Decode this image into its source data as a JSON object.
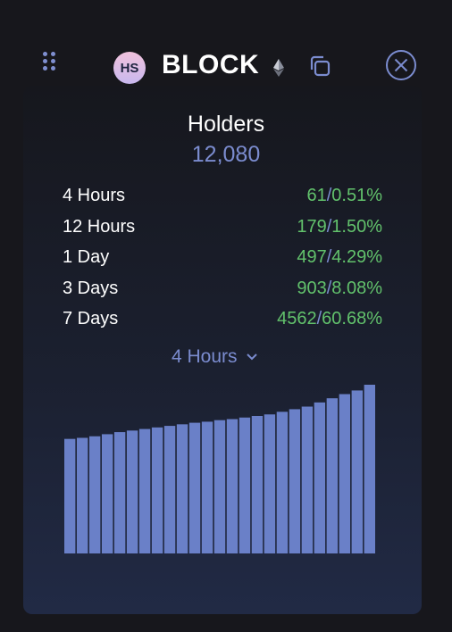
{
  "header": {
    "avatar_text": "HS",
    "token_name": "BLOCK",
    "icons": {
      "drag": "drag-handle-icon",
      "chain": "ethereum-icon",
      "copy": "copy-icon",
      "close": "close-icon"
    }
  },
  "holders": {
    "title": "Holders",
    "count": "12,080"
  },
  "stats": [
    {
      "label": "4 Hours",
      "count": "61",
      "percent": "0.51%"
    },
    {
      "label": "12 Hours",
      "count": "179",
      "percent": "1.50%"
    },
    {
      "label": "1 Day",
      "count": "497",
      "percent": "4.29%"
    },
    {
      "label": "3 Days",
      "count": "903",
      "percent": "8.08%"
    },
    {
      "label": "7 Days",
      "count": "4562",
      "percent": "60.68%"
    }
  ],
  "period_select": {
    "selected": "4 Hours"
  },
  "chart_data": {
    "type": "bar",
    "values": [
      11500,
      11510,
      11525,
      11545,
      11565,
      11580,
      11595,
      11610,
      11625,
      11640,
      11655,
      11665,
      11680,
      11690,
      11705,
      11720,
      11735,
      11760,
      11785,
      11810,
      11850,
      11890,
      11930,
      11965,
      12020
    ],
    "ylim": [
      10400,
      12080
    ]
  },
  "colors": {
    "accent": "#7b8ccf",
    "positive": "#62c26c",
    "bar": "#6a80c8",
    "background": "#17171c"
  }
}
